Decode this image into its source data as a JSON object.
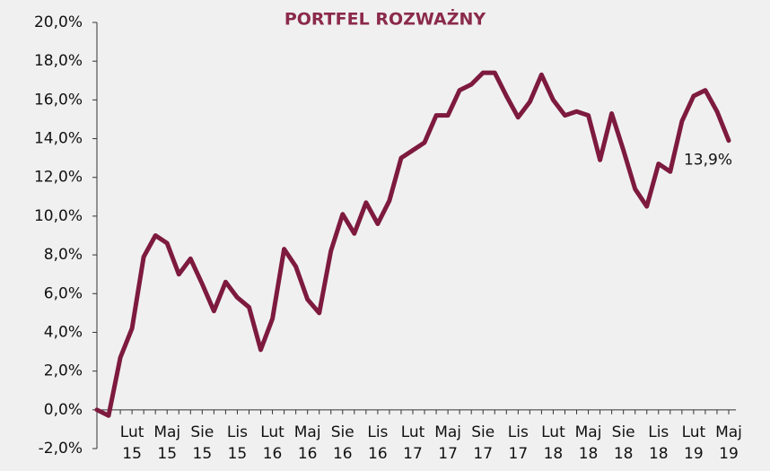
{
  "chart_data": {
    "type": "line",
    "title": "PORTFEL ROZWAŻNY",
    "categories": [
      null,
      null,
      null,
      "Lut 15",
      null,
      null,
      "Maj 15",
      null,
      null,
      "Sie 15",
      null,
      null,
      "Lis 15",
      null,
      null,
      "Lut 16",
      null,
      null,
      "Maj 16",
      null,
      null,
      "Sie 16",
      null,
      null,
      "Lis 16",
      null,
      null,
      "Lut 17",
      null,
      null,
      "Maj 17",
      null,
      null,
      "Sie 17",
      null,
      null,
      "Lis 17",
      null,
      null,
      "Lut 18",
      null,
      null,
      "Maj 18",
      null,
      null,
      "Sie 18",
      null,
      null,
      "Lis 18",
      null,
      null,
      "Lut 19",
      null,
      null,
      "Maj 19"
    ],
    "series": [
      {
        "color": "#7d1a3e",
        "values": [
          0,
          -0.3,
          2.7,
          4.2,
          7.9,
          9.0,
          8.6,
          7.0,
          7.8,
          6.5,
          5.1,
          6.6,
          5.8,
          5.3,
          3.1,
          4.7,
          8.3,
          7.4,
          5.7,
          5.0,
          8.2,
          10.1,
          9.1,
          10.7,
          9.6,
          10.8,
          13.0,
          13.4,
          13.8,
          15.2,
          15.2,
          16.5,
          16.8,
          17.4,
          17.4,
          16.2,
          15.1,
          15.9,
          17.3,
          16.0,
          15.2,
          15.4,
          15.2,
          12.9,
          15.3,
          13.4,
          11.4,
          10.5,
          12.7,
          12.3,
          14.9,
          16.2,
          16.5,
          15.4,
          13.9
        ],
        "value_labels": [
          null,
          null,
          null,
          null,
          null,
          null,
          null,
          null,
          null,
          null,
          null,
          null,
          null,
          null,
          null,
          null,
          null,
          null,
          null,
          null,
          null,
          null,
          null,
          null,
          null,
          null,
          null,
          null,
          null,
          null,
          null,
          null,
          null,
          null,
          null,
          null,
          null,
          null,
          null,
          null,
          null,
          null,
          null,
          null,
          null,
          null,
          null,
          null,
          null,
          null,
          null,
          null,
          null,
          null,
          "13,9%"
        ]
      }
    ],
    "ylim": [
      -2,
      20
    ],
    "yticks": [
      {
        "value": -2,
        "label": "-2,0%"
      },
      {
        "value": 0,
        "label": "0,0%"
      },
      {
        "value": 2,
        "label": "2,0%"
      },
      {
        "value": 4,
        "label": "4,0%"
      },
      {
        "value": 6,
        "label": "6,0%"
      },
      {
        "value": 8,
        "label": "8,0%"
      },
      {
        "value": 10,
        "label": "10,0%"
      },
      {
        "value": 12,
        "label": "12,0%"
      },
      {
        "value": 14,
        "label": "14,0%"
      },
      {
        "value": 16,
        "label": "16,0%"
      },
      {
        "value": 18,
        "label": "18,0%"
      },
      {
        "value": 20,
        "label": "20,0%"
      }
    ],
    "grid": false
  }
}
